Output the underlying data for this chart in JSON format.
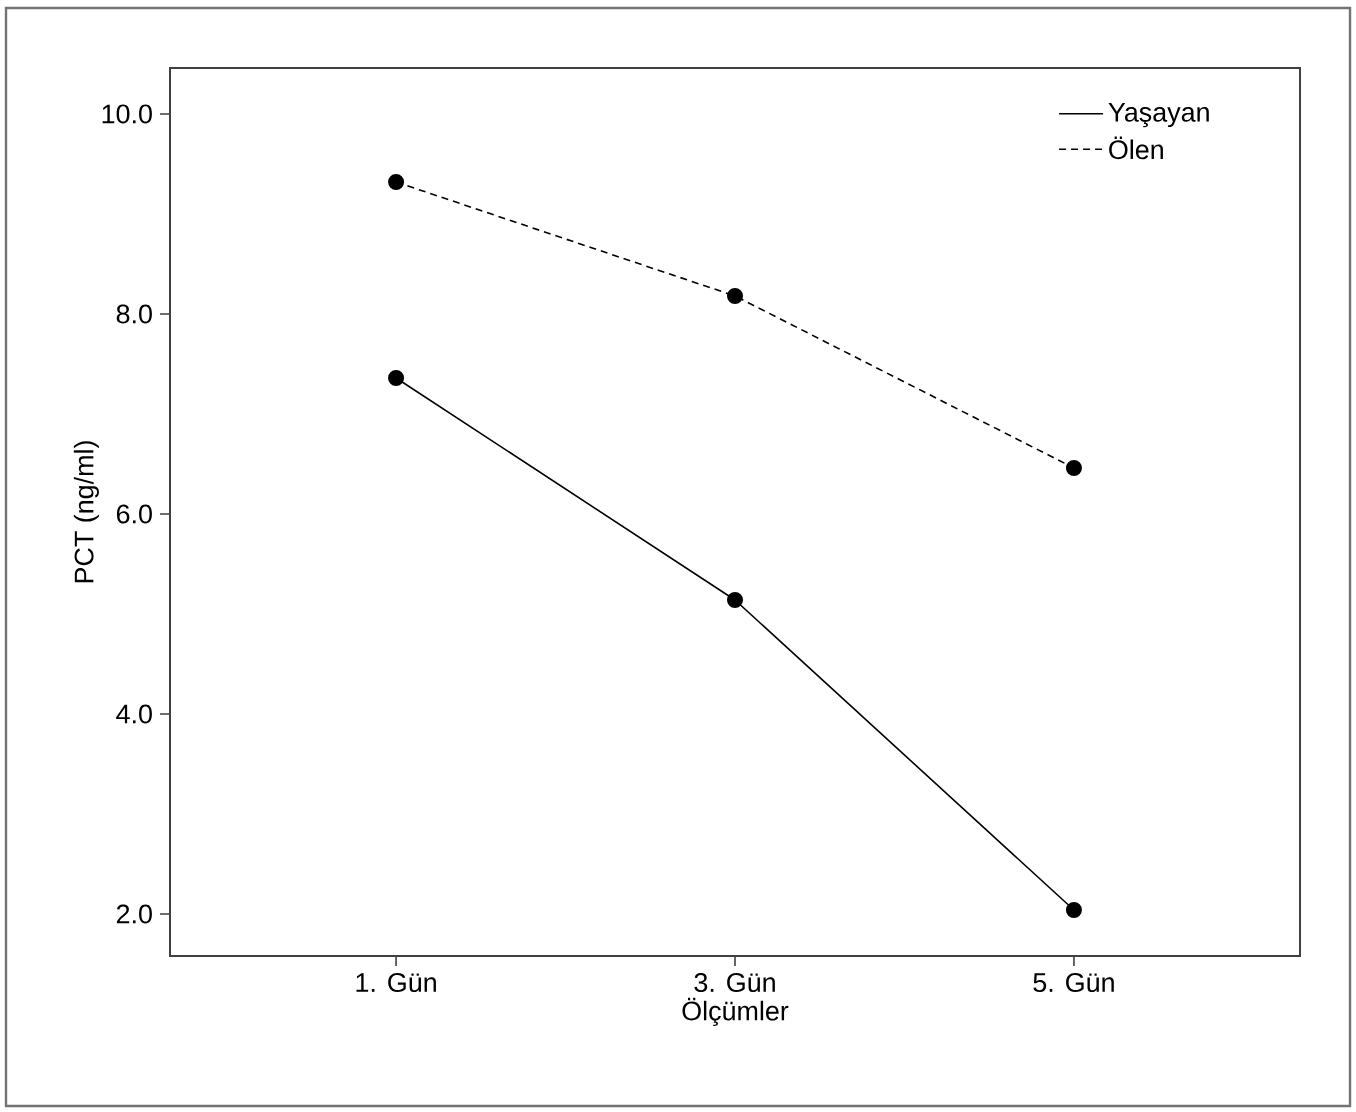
{
  "chart_data": {
    "type": "line",
    "xlabel": "Ölçümler",
    "ylabel": "PCT (ng/ml)",
    "categories": [
      "1. Gün",
      "3. Gün",
      "5. Gün"
    ],
    "series": [
      {
        "name": "Yaşayan",
        "color": "#000000",
        "line_style": "solid",
        "values": [
          7.36,
          5.14,
          2.04
        ]
      },
      {
        "name": "Ölen",
        "color": "#000000",
        "line_style": "dashed",
        "values": [
          9.32,
          8.18,
          6.46
        ]
      }
    ],
    "marker": "circle",
    "legend": "top right",
    "ylim": [
      1.58,
      10.46
    ],
    "yticks": [
      {
        "value": 2,
        "label": "2.0"
      },
      {
        "value": 4,
        "label": "4.0"
      },
      {
        "value": 6,
        "label": "6.0"
      },
      {
        "value": 8,
        "label": "8.0"
      },
      {
        "value": 10,
        "label": "10.0"
      }
    ]
  }
}
